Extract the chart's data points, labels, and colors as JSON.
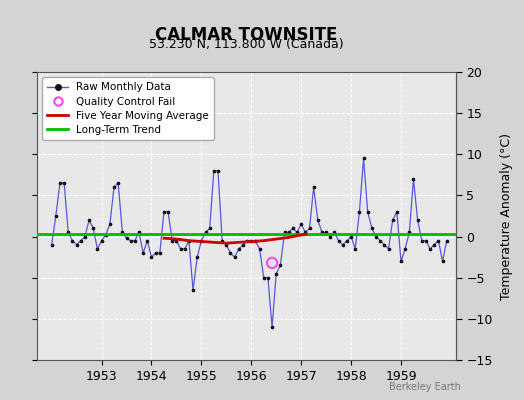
{
  "title": "CALMAR TOWNSITE",
  "subtitle": "53.230 N, 113.800 W (Canada)",
  "ylabel": "Temperature Anomaly (°C)",
  "watermark": "Berkeley Earth",
  "xlim": [
    1951.7,
    1960.1
  ],
  "ylim": [
    -15,
    20
  ],
  "yticks": [
    -15,
    -10,
    -5,
    0,
    5,
    10,
    15,
    20
  ],
  "xticks": [
    1953,
    1954,
    1955,
    1956,
    1957,
    1958,
    1959
  ],
  "bg_color": "#d4d4d4",
  "plot_bg_color": "#e8e8e8",
  "raw_data_x": [
    1952.0,
    1952.083,
    1952.167,
    1952.25,
    1952.333,
    1952.417,
    1952.5,
    1952.583,
    1952.667,
    1952.75,
    1952.833,
    1952.917,
    1953.0,
    1953.083,
    1953.167,
    1953.25,
    1953.333,
    1953.417,
    1953.5,
    1953.583,
    1953.667,
    1953.75,
    1953.833,
    1953.917,
    1954.0,
    1954.083,
    1954.167,
    1954.25,
    1954.333,
    1954.417,
    1954.5,
    1954.583,
    1954.667,
    1954.75,
    1954.833,
    1954.917,
    1955.0,
    1955.083,
    1955.167,
    1955.25,
    1955.333,
    1955.417,
    1955.5,
    1955.583,
    1955.667,
    1955.75,
    1955.833,
    1955.917,
    1956.0,
    1956.083,
    1956.167,
    1956.25,
    1956.333,
    1956.417,
    1956.5,
    1956.583,
    1956.667,
    1956.75,
    1956.833,
    1956.917,
    1957.0,
    1957.083,
    1957.167,
    1957.25,
    1957.333,
    1957.417,
    1957.5,
    1957.583,
    1957.667,
    1957.75,
    1957.833,
    1957.917,
    1958.0,
    1958.083,
    1958.167,
    1958.25,
    1958.333,
    1958.417,
    1958.5,
    1958.583,
    1958.667,
    1958.75,
    1958.833,
    1958.917,
    1959.0,
    1959.083,
    1959.167,
    1959.25,
    1959.333,
    1959.417,
    1959.5,
    1959.583,
    1959.667,
    1959.75,
    1959.833,
    1959.917
  ],
  "raw_data_y": [
    -1.0,
    2.5,
    6.5,
    6.5,
    0.5,
    -0.5,
    -1.0,
    -0.5,
    0.0,
    2.0,
    1.0,
    -1.5,
    -0.5,
    0.2,
    1.5,
    6.0,
    6.5,
    0.5,
    -0.2,
    -0.5,
    -0.5,
    0.5,
    -2.0,
    -0.5,
    -2.5,
    -2.0,
    -2.0,
    3.0,
    3.0,
    -0.5,
    -0.5,
    -1.5,
    -1.5,
    -0.5,
    -6.5,
    -2.5,
    -0.5,
    0.5,
    1.0,
    8.0,
    8.0,
    -0.5,
    -1.0,
    -2.0,
    -2.5,
    -1.5,
    -1.0,
    -0.5,
    -0.5,
    -0.5,
    -1.5,
    -5.0,
    -5.0,
    -11.0,
    -4.5,
    -3.5,
    0.5,
    0.5,
    1.0,
    0.5,
    1.5,
    0.5,
    1.0,
    6.0,
    2.0,
    0.5,
    0.5,
    0.0,
    0.5,
    -0.5,
    -1.0,
    -0.5,
    0.0,
    -1.5,
    3.0,
    9.5,
    3.0,
    1.0,
    0.0,
    -0.5,
    -1.0,
    -1.5,
    2.0,
    3.0,
    -3.0,
    -1.5,
    0.5,
    7.0,
    2.0,
    -0.5,
    -0.5,
    -1.5,
    -1.0,
    -0.5,
    -3.0,
    -0.5
  ],
  "qc_fail_x": [
    1956.417
  ],
  "qc_fail_y": [
    -3.2
  ],
  "moving_avg_x": [
    1954.25,
    1954.5,
    1954.75,
    1955.0,
    1955.25,
    1955.5,
    1955.75,
    1956.0,
    1956.25,
    1956.5,
    1956.75,
    1957.0,
    1957.1
  ],
  "moving_avg_y": [
    -0.2,
    -0.3,
    -0.5,
    -0.6,
    -0.7,
    -0.8,
    -0.7,
    -0.6,
    -0.5,
    -0.3,
    -0.1,
    0.2,
    0.3
  ],
  "long_term_trend_x": [
    1951.7,
    1960.1
  ],
  "long_term_trend_y": [
    0.35,
    0.35
  ],
  "line_color": "#5555dd",
  "dot_color": "#111111",
  "qc_color": "#ff44ff",
  "moving_avg_color": "#cc0000",
  "trend_color": "#00bb00",
  "title_fontsize": 12,
  "subtitle_fontsize": 9,
  "tick_fontsize": 9,
  "ylabel_fontsize": 9
}
